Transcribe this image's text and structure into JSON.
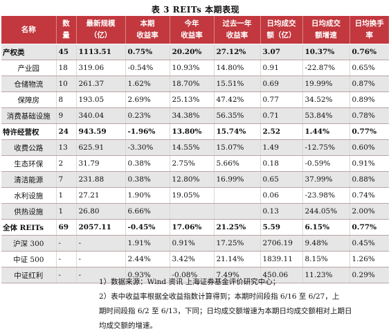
{
  "title": "表 3 REITs 本期表现",
  "headers": [
    [
      "名称"
    ],
    [
      "数",
      "量"
    ],
    [
      "最新规模",
      "（亿）"
    ],
    [
      "本期",
      "收益率"
    ],
    [
      "今年",
      "收益率"
    ],
    [
      "过去一年",
      "收益率"
    ],
    [
      "日均成交",
      "额（亿）"
    ],
    [
      "日均成交",
      "额增速"
    ],
    [
      "日均换手",
      "率"
    ]
  ],
  "rows": [
    {
      "type": "bold",
      "cells": [
        "产权类",
        "45",
        "1113.51",
        "0.75%",
        "20.20%",
        "27.12%",
        "3.07",
        "10.37%",
        "0.76%"
      ]
    },
    {
      "type": "normal",
      "cells": [
        "产业园",
        "18",
        "319.06",
        "-0.54%",
        "10.93%",
        "14.80%",
        "0.91",
        "-22.87%",
        "0.65%"
      ]
    },
    {
      "type": "normal",
      "cells": [
        "仓储物流",
        "10",
        "261.37",
        "1.62%",
        "18.70%",
        "15.51%",
        "0.69",
        "19.99%",
        "0.87%"
      ]
    },
    {
      "type": "normal",
      "cells": [
        "保障房",
        "8",
        "193.05",
        "2.69%",
        "25.13%",
        "47.42%",
        "0.77",
        "34.52%",
        "0.89%"
      ]
    },
    {
      "type": "normal",
      "cells": [
        "消费基础设施",
        "9",
        "340.04",
        "0.23%",
        "34.38%",
        "56.35%",
        "0.71",
        "53.84%",
        "0.78%"
      ]
    },
    {
      "type": "bold",
      "cells": [
        "特许经营权",
        "24",
        "943.59",
        "-1.96%",
        "13.80%",
        "15.74%",
        "2.52",
        "1.44%",
        "0.77%"
      ]
    },
    {
      "type": "normal",
      "cells": [
        "收费公路",
        "13",
        "625.91",
        "-3.30%",
        "14.55%",
        "15.07%",
        "1.49",
        "-12.75%",
        "0.60%"
      ]
    },
    {
      "type": "normal",
      "cells": [
        "生态环保",
        "2",
        "31.79",
        "0.38%",
        "2.75%",
        "5.66%",
        "0.18",
        "-0.59%",
        "0.91%"
      ]
    },
    {
      "type": "normal",
      "cells": [
        "清洁能源",
        "7",
        "231.88",
        "0.38%",
        "12.80%",
        "16.99%",
        "0.65",
        "37.99%",
        "0.88%"
      ]
    },
    {
      "type": "normal",
      "cells": [
        "水利设施",
        "1",
        "27.21",
        "1.90%",
        "19.05%",
        "",
        "0.06",
        "-23.98%",
        "0.74%"
      ]
    },
    {
      "type": "normal",
      "cells": [
        "供热设施",
        "1",
        "26.80",
        "6.66%",
        "",
        "",
        "0.13",
        "244.05%",
        "2.00%"
      ]
    },
    {
      "type": "bold",
      "cells": [
        "全体 REITs",
        "69",
        "2057.11",
        "-0.45%",
        "17.06%",
        "21.25%",
        "5.59",
        "6.15%",
        "0.77%"
      ]
    },
    {
      "type": "index",
      "cells": [
        "沪深 300",
        "-",
        "-",
        "1.91%",
        "0.91%",
        "17.25%",
        "2706.19",
        "9.48%",
        "0.45%"
      ]
    },
    {
      "type": "index",
      "cells": [
        "中证 500",
        "-",
        "-",
        "2.44%",
        "3.42%",
        "21.14%",
        "1839.11",
        "8.15%",
        "1.26%"
      ]
    },
    {
      "type": "index",
      "cells": [
        "中证红利",
        "-",
        "-",
        "0.93%",
        "-0.08%",
        "7.49%",
        "450.06",
        "11.23%",
        "0.29%"
      ]
    }
  ],
  "notes": [
    "1）数据来源：Wind 资讯 上海证券基金评价研究中心；",
    "2）表中收益率根据全收益指数计算得到；本期时间段指 6/16 至 6/27，上",
    "期时间段指 6/2 至 6/13，下同；日均成交额增速为本期日均成交额相对上期日",
    "均成交额的增速。"
  ]
}
